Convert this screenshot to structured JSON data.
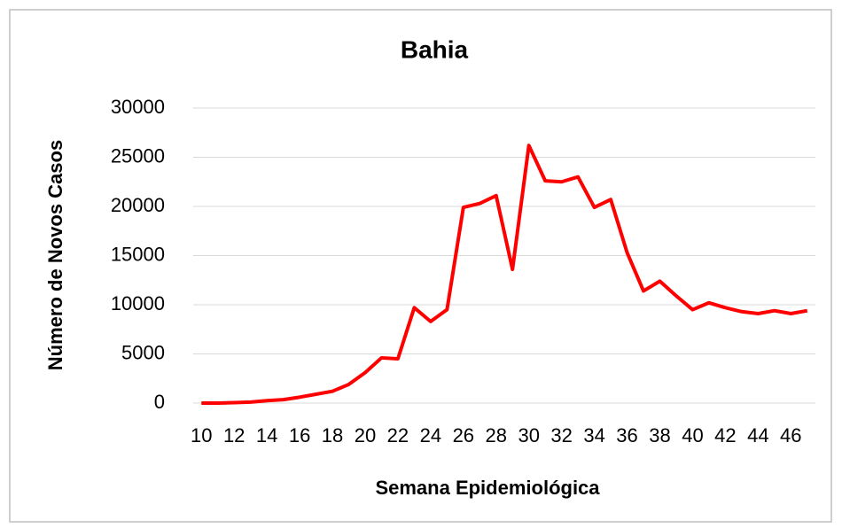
{
  "chart_data": {
    "type": "line",
    "title": "Bahia",
    "x_label": "Semana Epidemiológica",
    "y_label": "Número de Novos Casos",
    "categories": [
      "10",
      null,
      "12",
      null,
      "14",
      null,
      "16",
      null,
      "18",
      null,
      "20",
      null,
      "22",
      null,
      "24",
      null,
      "26",
      null,
      "28",
      null,
      "30",
      null,
      "32",
      null,
      "34",
      null,
      "36",
      null,
      "38",
      null,
      "40",
      null,
      "42",
      null,
      "44",
      null,
      "46",
      null
    ],
    "series": [
      {
        "name": "Bahia",
        "color": "#ff0000",
        "values": [
          0,
          0,
          50,
          100,
          250,
          350,
          600,
          900,
          1200,
          1900,
          3100,
          4600,
          4500,
          9700,
          8300,
          9500,
          19900,
          20300,
          21100,
          13600,
          26200,
          22600,
          22500,
          23000,
          19900,
          20700,
          15300,
          11400,
          12400,
          10900,
          9500,
          10200,
          9700,
          9300,
          9100,
          9400,
          9100,
          9400
        ]
      }
    ],
    "ylim": [
      0,
      30000
    ],
    "yticks": [
      0,
      5000,
      10000,
      15000,
      20000,
      25000,
      30000
    ],
    "grid": true
  }
}
